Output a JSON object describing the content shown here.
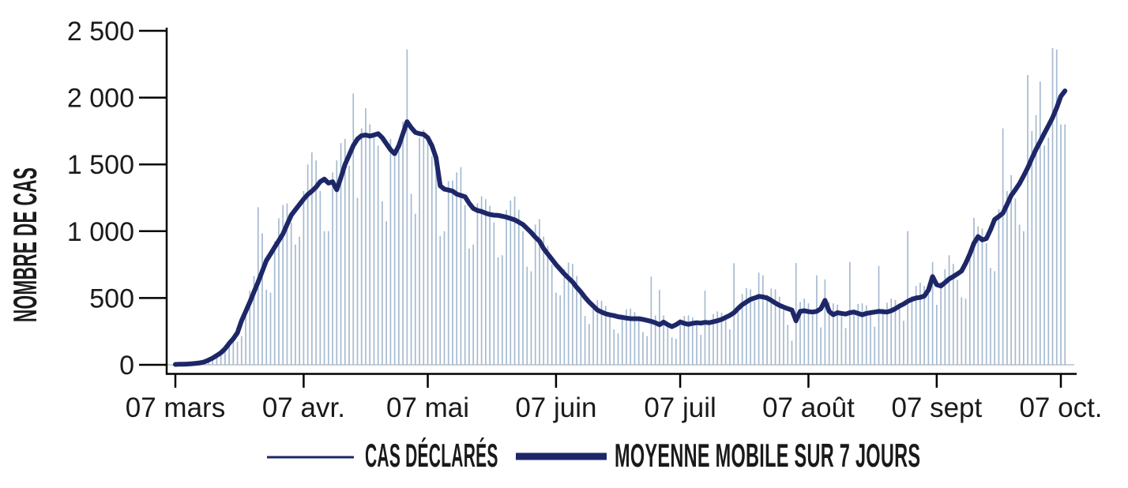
{
  "chart": {
    "y_axis_label": "NOMBRE DE CAS",
    "legend": [
      {
        "label": "CAS DÉCLARÉS",
        "sample": "thin-line"
      },
      {
        "label": "MOYENNE MOBILE SUR 7 JOURS",
        "sample": "thick-line"
      }
    ],
    "colors": {
      "bar": "#a6bad0",
      "line": "#1d2768",
      "axis": "#000000",
      "text": "#1a1a1a",
      "zero_line": "#b8c1cb"
    }
  },
  "chart_data": {
    "type": "bar",
    "title": "",
    "xlabel": "",
    "ylabel": "NOMBRE DE CAS",
    "ylim": [
      0,
      2500
    ],
    "grid": false,
    "legend_position": "bottom",
    "y_tick_values": [
      0,
      500,
      1000,
      1500,
      2000,
      2500
    ],
    "y_tick_labels": [
      "0",
      "500",
      "1 000",
      "1 500",
      "2 000",
      "2 500"
    ],
    "x_tick_labels": [
      "07 mars",
      "07 avr.",
      "07 mai",
      "07 juin",
      "07 juil",
      "07 août",
      "07 sept",
      "07 oct."
    ],
    "x_tick_day_index": [
      0,
      31,
      61,
      92,
      122,
      153,
      184,
      214
    ],
    "series": [
      {
        "name": "CAS DÉCLARÉS",
        "type": "bar",
        "values": [
          3,
          3,
          3,
          6,
          9,
          13,
          17,
          21,
          25,
          33,
          74,
          106,
          146,
          184,
          185,
          173,
          215,
          420,
          555,
          665,
          1180,
          985,
          562,
          540,
          924,
          1097,
          1196,
          1208,
          1064,
          900,
          960,
          1300,
          1500,
          1590,
          1530,
          1300,
          1000,
          1000,
          1440,
          1530,
          1660,
          1690,
          1490,
          2030,
          1250,
          1770,
          1920,
          1800,
          1700,
          1640,
          1225,
          1075,
          1690,
          1560,
          1600,
          1820,
          2360,
          1280,
          1130,
          1700,
          1760,
          1680,
          1560,
          1475,
          965,
          1000,
          1375,
          1380,
          1440,
          1480,
          1195,
          870,
          900,
          1210,
          1260,
          1240,
          1190,
          1065,
          805,
          820,
          1160,
          1230,
          1260,
          1160,
          1000,
          735,
          700,
          1050,
          1090,
          960,
          890,
          750,
          540,
          520,
          715,
          765,
          755,
          665,
          520,
          365,
          305,
          460,
          485,
          480,
          440,
          355,
          265,
          235,
          375,
          415,
          420,
          395,
          330,
          245,
          215,
          660,
          370,
          560,
          370,
          285,
          205,
          195,
          340,
          365,
          370,
          355,
          300,
          225,
          555,
          330,
          380,
          400,
          390,
          335,
          265,
          760,
          445,
          530,
          575,
          565,
          475,
          690,
          670,
          525,
          570,
          565,
          510,
          410,
          300,
          180,
          762,
          470,
          495,
          460,
          375,
          670,
          280,
          640,
          470,
          460,
          450,
          365,
          275,
          770,
          415,
          455,
          460,
          445,
          370,
          285,
          740,
          420,
          465,
          495,
          485,
          420,
          330,
          1000,
          515,
          590,
          615,
          590,
          530,
          770,
          450,
          620,
          715,
          820,
          755,
          635,
          505,
          495,
          870,
          1100,
          1035,
          1020,
          910,
          725,
          700,
          1165,
          1770,
          1300,
          1420,
          1245,
          1050,
          1000,
          2170,
          1750,
          1870,
          2120,
          1640,
          1700,
          2370,
          2360,
          1800,
          1800
        ]
      },
      {
        "name": "MOYENNE MOBILE SUR 7 JOURS",
        "type": "line",
        "values": [
          3,
          4,
          5,
          6,
          8,
          11,
          15,
          22,
          35,
          50,
          70,
          90,
          120,
          160,
          195,
          240,
          330,
          400,
          470,
          545,
          620,
          700,
          780,
          830,
          880,
          930,
          980,
          1050,
          1120,
          1160,
          1200,
          1240,
          1275,
          1300,
          1330,
          1370,
          1390,
          1360,
          1370,
          1310,
          1400,
          1500,
          1570,
          1640,
          1690,
          1715,
          1720,
          1712,
          1720,
          1730,
          1700,
          1655,
          1610,
          1580,
          1640,
          1730,
          1820,
          1775,
          1740,
          1730,
          1725,
          1700,
          1640,
          1550,
          1340,
          1315,
          1308,
          1300,
          1278,
          1268,
          1258,
          1210,
          1170,
          1155,
          1148,
          1135,
          1125,
          1120,
          1118,
          1112,
          1105,
          1095,
          1085,
          1068,
          1050,
          1020,
          990,
          955,
          925,
          870,
          830,
          790,
          750,
          715,
          680,
          650,
          620,
          580,
          545,
          505,
          470,
          440,
          410,
          395,
          382,
          374,
          368,
          360,
          355,
          350,
          346,
          345,
          345,
          340,
          333,
          325,
          315,
          300,
          320,
          300,
          286,
          300,
          321,
          310,
          303,
          310,
          315,
          312,
          318,
          315,
          322,
          330,
          340,
          355,
          370,
          390,
          422,
          450,
          470,
          490,
          500,
          512,
          508,
          500,
          482,
          462,
          445,
          432,
          420,
          410,
          330,
          400,
          405,
          398,
          395,
          400,
          420,
          482,
          400,
          375,
          390,
          385,
          380,
          390,
          395,
          385,
          375,
          385,
          390,
          395,
          400,
          398,
          395,
          405,
          420,
          440,
          455,
          475,
          490,
          500,
          505,
          515,
          560,
          660,
          600,
          590,
          615,
          643,
          660,
          680,
          702,
          760,
          830,
          910,
          960,
          935,
          945,
          1010,
          1088,
          1110,
          1136,
          1200,
          1267,
          1310,
          1356,
          1415,
          1475,
          1545,
          1612,
          1670,
          1731,
          1790,
          1850,
          1925,
          2010,
          2050
        ]
      }
    ]
  }
}
